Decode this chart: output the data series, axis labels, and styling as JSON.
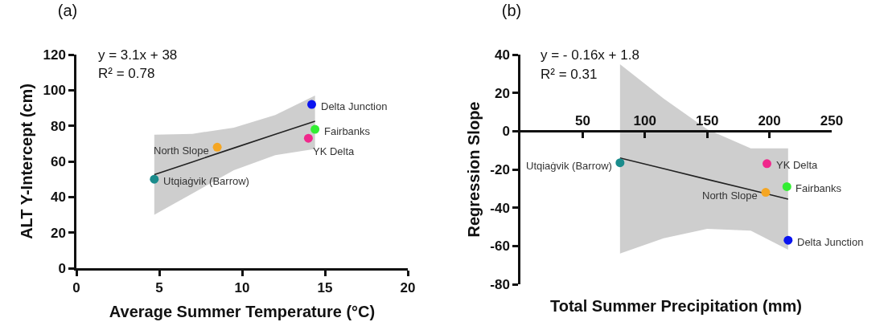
{
  "chart_data": [
    {
      "type": "scatter",
      "title": "(a)",
      "xlabel": "Average Summer Temperature (°C)",
      "ylabel": "ALT Y-Intercept (cm)",
      "xlim": [
        0,
        20
      ],
      "xticks": [
        0,
        5,
        10,
        15,
        20
      ],
      "ylim": [
        0,
        120
      ],
      "yticks": [
        0,
        20,
        40,
        60,
        80,
        100,
        120
      ],
      "grid": false,
      "marker": "circle",
      "annotations": [
        "y = 3.1x + 38",
        "R² = 0.78",
        {
          "text": "Utqiaġvik (Barrow)",
          "x": 4.7,
          "y": 50
        },
        {
          "text": "North Slope",
          "x": 8.5,
          "y": 68
        },
        {
          "text": "YK Delta",
          "x": 14,
          "y": 73
        },
        {
          "text": "Delta Junction",
          "x": 14.2,
          "y": 92
        },
        {
          "text": "Fairbanks",
          "x": 14.4,
          "y": 78
        }
      ],
      "series": [
        {
          "type": "line",
          "marker": "none",
          "color": "#222222",
          "x": [
            4.7,
            7,
            9.5,
            12,
            14.4
          ],
          "values": [
            52.6,
            59.7,
            67.5,
            75.2,
            82.6
          ],
          "lower": [
            30,
            42,
            55,
            63.5,
            67
          ],
          "upper": [
            75,
            75.5,
            79,
            86,
            97
          ]
        },
        {
          "x": [
            4.7,
            8.5,
            14,
            14.2,
            14.4
          ],
          "values": [
            50,
            68,
            73,
            92,
            78
          ],
          "colors": [
            "#1a8c8c",
            "#f5a623",
            "#f0288c",
            "#0a14f0",
            "#33ee33"
          ]
        }
      ]
    },
    {
      "type": "scatter",
      "title": "(b)",
      "xlabel": "Total Summer Precipitation (mm)",
      "ylabel": "Regression Slope",
      "xlim": [
        0,
        250
      ],
      "xticks": [
        50,
        100,
        150,
        200,
        250
      ],
      "ylim": [
        -80,
        40
      ],
      "yticks": [
        -80,
        -60,
        -40,
        -20,
        0,
        20,
        40
      ],
      "grid": false,
      "marker": "circle",
      "annotations": [
        "y = - 0.16x + 1.8",
        "R² = 0.31",
        {
          "text": "Utqiaġvik (Barrow)",
          "x": 80,
          "y": -16.5
        },
        {
          "text": "YK Delta",
          "x": 198,
          "y": -17
        },
        {
          "text": "North Slope",
          "x": 197,
          "y": -32
        },
        {
          "text": "Fairbanks",
          "x": 214,
          "y": -29
        },
        {
          "text": "Delta Junction",
          "x": 215,
          "y": -57
        }
      ],
      "series": [
        {
          "type": "line",
          "marker": "none",
          "color": "#222222",
          "x": [
            80,
            115,
            150,
            185,
            215
          ],
          "values": [
            -14,
            -19.6,
            -25.2,
            -30.7,
            -35.5
          ],
          "lower": [
            -64,
            -56,
            -51,
            -52,
            -62
          ],
          "upper": [
            35,
            17,
            1,
            -9,
            -9
          ]
        },
        {
          "x": [
            80,
            198,
            197,
            214,
            215
          ],
          "values": [
            -16.5,
            -17,
            -32,
            -29,
            -57
          ],
          "colors": [
            "#1a8c8c",
            "#f0288c",
            "#f5a623",
            "#33ee33",
            "#0a14f0"
          ]
        }
      ]
    }
  ]
}
